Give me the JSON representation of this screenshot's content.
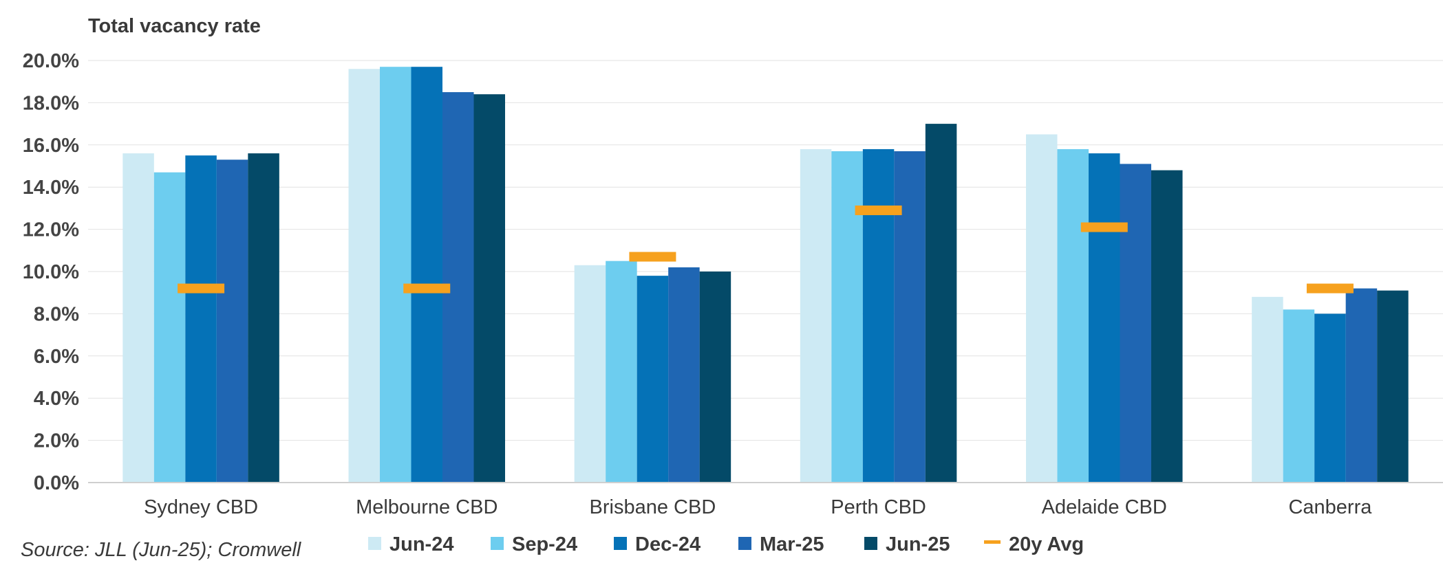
{
  "chart_data": {
    "type": "bar",
    "title": "Total vacancy rate",
    "categories": [
      "Sydney CBD",
      "Melbourne CBD",
      "Brisbane CBD",
      "Perth CBD",
      "Adelaide CBD",
      "Canberra"
    ],
    "series": [
      {
        "name": "Jun-24",
        "color": "#cdeaf4",
        "values": [
          15.6,
          19.6,
          10.3,
          15.8,
          16.5,
          8.8
        ]
      },
      {
        "name": "Sep-24",
        "color": "#6dcdef",
        "values": [
          14.7,
          19.7,
          10.5,
          15.7,
          15.8,
          8.2
        ]
      },
      {
        "name": "Dec-24",
        "color": "#0572b7",
        "values": [
          15.5,
          19.7,
          9.8,
          15.8,
          15.6,
          8.0
        ]
      },
      {
        "name": "Mar-25",
        "color": "#1f66b3",
        "values": [
          15.3,
          18.5,
          10.2,
          15.7,
          15.1,
          9.2
        ]
      },
      {
        "name": "Jun-25",
        "color": "#044a68",
        "values": [
          15.6,
          18.4,
          10.0,
          17.0,
          14.8,
          9.1
        ]
      }
    ],
    "avg": {
      "name": "20y Avg",
      "color": "#f6a11e",
      "values": [
        9.2,
        9.2,
        10.7,
        12.9,
        12.1,
        9.2
      ]
    },
    "ylim": [
      0,
      20
    ],
    "yticks": [
      "0.0%",
      "2.0%",
      "4.0%",
      "6.0%",
      "8.0%",
      "10.0%",
      "12.0%",
      "14.0%",
      "16.0%",
      "18.0%",
      "20.0%"
    ],
    "xlabel": "",
    "ylabel": "",
    "grid": true,
    "legend_position": "bottom"
  },
  "source": "Source: JLL (Jun-25); Cromwell"
}
